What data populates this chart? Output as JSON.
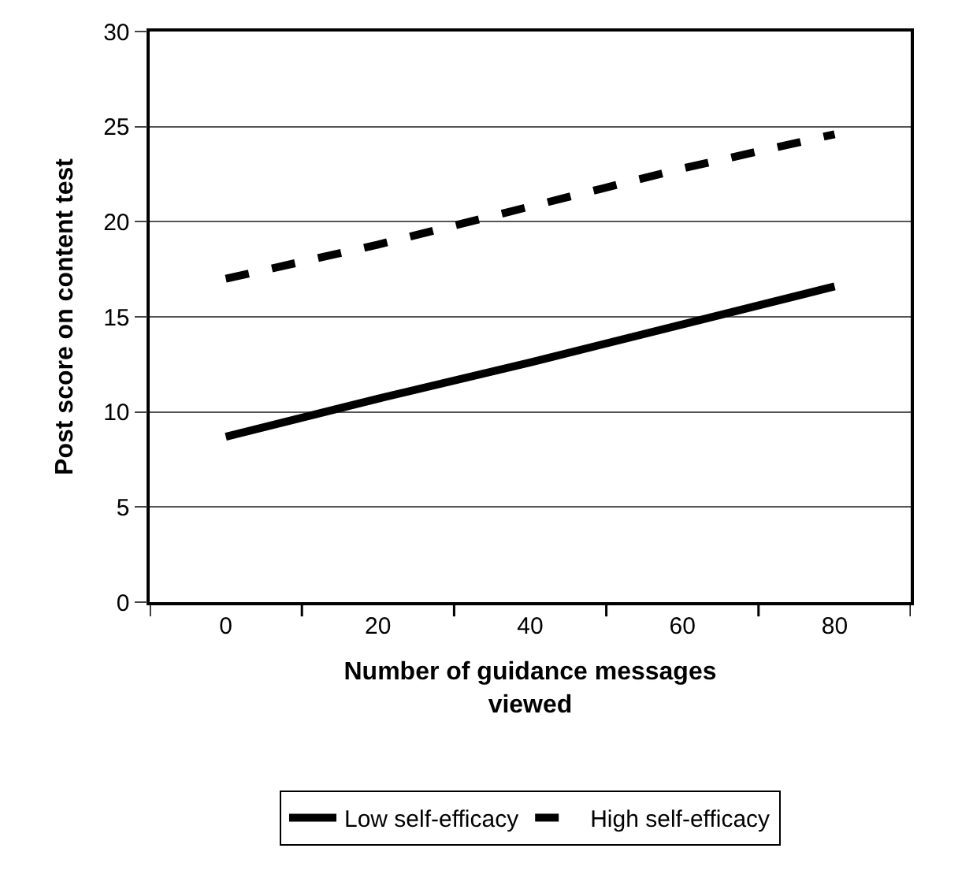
{
  "chart_data": {
    "type": "line",
    "xlabel": "Number of guidance messages viewed",
    "ylabel": "Post score on content test",
    "categories": [
      "0",
      "20",
      "40",
      "60",
      "80"
    ],
    "series": [
      {
        "name": "Low self-efficacy",
        "color": "#000000",
        "line_style": "solid",
        "values": [
          8.7,
          10.7,
          12.6,
          14.6,
          16.6
        ]
      },
      {
        "name": "High self-efficacy",
        "color": "#000000",
        "line_style": "dashed",
        "values": [
          17.0,
          18.8,
          20.8,
          22.8,
          24.6
        ]
      }
    ],
    "ylim": [
      0,
      30
    ],
    "yticks": [
      0,
      5,
      10,
      15,
      20,
      25,
      30
    ],
    "grid": "y",
    "legend": "bottom",
    "marker": "none"
  }
}
